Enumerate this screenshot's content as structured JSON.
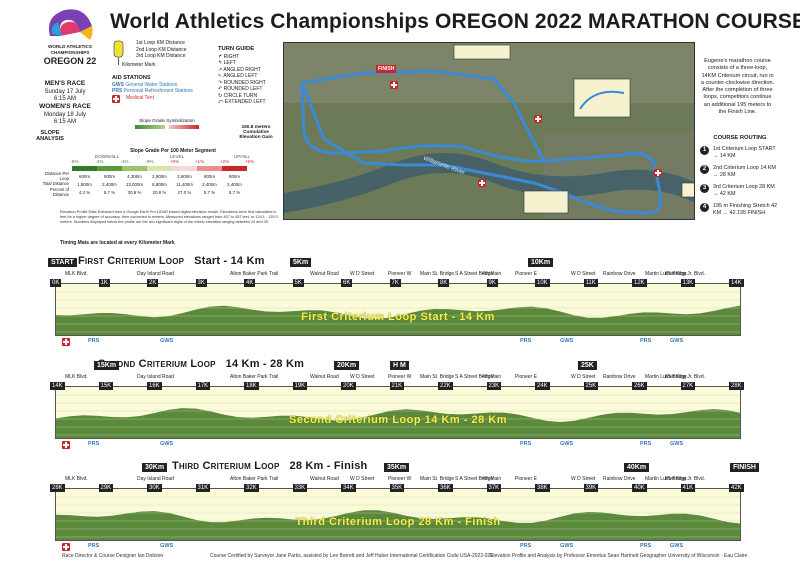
{
  "title": "World Athletics Championships  OREGON 2022  MARATHON COURSE",
  "logo": {
    "line1": "WORLD ATHLETICS",
    "line2": "CHAMPIONSHIPS",
    "line3": "OREGON 22"
  },
  "races": {
    "mens_title": "MEN'S RACE",
    "mens_date": "Sunday 17 July",
    "mens_time": "6:15 AM",
    "womens_title": "WOMEN'S RACE",
    "womens_date": "Monday 18 July",
    "womens_time": "6:15 AM"
  },
  "loop_legend": {
    "l1": "1st Loop KM Distance",
    "l2": "2nd Loop KM Distance",
    "l3": "3rd Loop KM Distance",
    "km_mark": "Kilometer Mark"
  },
  "aid": {
    "title": "AID STATIONS",
    "gws_code": "GWS",
    "gws": "General Water Stations",
    "prs_code": "PRS",
    "prs": "Personal Refreshment Stations",
    "medical": "Medical Tent"
  },
  "turn_guide": {
    "title": "TURN GUIDE",
    "items": [
      "RIGHT",
      "LEFT",
      "ANGLED RIGHT",
      "ANGLED LEFT",
      "ROUNDED RIGHT",
      "ROUNDED LEFT",
      "CIRCLE TURN",
      "EXTENDED LEFT"
    ]
  },
  "slope": {
    "title": "SLOPE ANALYSIS",
    "symbolization": "Slope Grade Symbolization",
    "grade_title": "Slope Grade Per 100 Meter Segment",
    "downhill": "DOWNHILL",
    "level": "LEVEL",
    "uphill": "UPHILL",
    "gain": "150.8 meters Cumulative Elevation Gain",
    "headers": [
      "-5%",
      "-2%",
      "-1%",
      "-0%",
      "+0%",
      "+1%",
      "+2%",
      "+5%"
    ],
    "row_labels": [
      "Distance Per Loop",
      "Total Distance",
      "Percent of Distance"
    ],
    "rows": [
      [
        "600m",
        "800m",
        "4,300m",
        "2,900m",
        "3,800m",
        "800m",
        "800m"
      ],
      [
        "1,800m",
        "2,400m",
        "13,000m",
        "8,800m",
        "11,400m",
        "2,400m",
        "2,400m"
      ],
      [
        "4.3 %",
        "5.7 %",
        "30.8 %",
        "20.8 %",
        "27.0 %",
        "5.7 %",
        "5.7 %"
      ]
    ],
    "note": "Elevation Profile Data Extracted from a Google Earth Pro LIDAR based digital elevation model. Elevations were first calculated in feet for a higher degree of accuracy, then converted to meters. Measured elevations ranged from 407 to 457 feet, or 124.1 - 139.3 meters. Numbers displayed below the profile are the two significant digits of the metric elevation ranging between 24 and 39.",
    "timing": "Timing Mats are located at every Kilometer Mark"
  },
  "map": {
    "finish": "FINISH",
    "river": "Willamette River"
  },
  "description": "Eugene's marathon course consists of a three-loop, 14KM Criterium circuit, run in a counter-clockwise direction. After the completion of three loops, competitors continue an additional 195 meters to the Finish Line.",
  "routing": {
    "title": "COURSE ROUTING",
    "items": [
      {
        "num": "1",
        "text": "1st Criterium Loop START → 14 KM"
      },
      {
        "num": "2",
        "text": "2nd Criterium Loop 14 KM → 28 KM"
      },
      {
        "num": "3",
        "text": "3rd Criterium Loop 28 KM → 42 KM"
      },
      {
        "num": "4",
        "text": "195 m Finishing Stretch 42 KM → 42.195 FINISH"
      }
    ]
  },
  "loops": [
    {
      "title_prefix": "First Criterium Loop",
      "title_suffix": "Start - 14 Km",
      "strip_label": "First Criterium Loop  Start - 14 Km",
      "km_marks": [
        "0K",
        "1K",
        "2K",
        "3K",
        "4K",
        "5K",
        "6K",
        "7K",
        "8K",
        "9K",
        "10K",
        "11K",
        "12K",
        "13K",
        "14K"
      ],
      "callouts": [
        "START",
        "5Km",
        "10Km"
      ]
    },
    {
      "title_prefix": "Second Criterium Loop",
      "title_suffix": "14 Km - 28 Km",
      "strip_label": "Second Criterium Loop  14 Km - 28 Km",
      "km_marks": [
        "14K",
        "15K",
        "16K",
        "17K",
        "18K",
        "19K",
        "20K",
        "21K",
        "22K",
        "23K",
        "24K",
        "25K",
        "26K",
        "27K",
        "28K"
      ],
      "callouts": [
        "15Km",
        "20Km",
        "H M",
        "25K"
      ]
    },
    {
      "title_prefix": "Third Criterium Loop",
      "title_suffix": "28 Km - Finish",
      "strip_label": "Third Criterium Loop  28 Km - Finish",
      "km_marks": [
        "28K",
        "29K",
        "30K",
        "31K",
        "32K",
        "33K",
        "34K",
        "35K",
        "36K",
        "37K",
        "38K",
        "39K",
        "40K",
        "41K",
        "42K"
      ],
      "callouts": [
        "30Km",
        "35Km",
        "40Km",
        "FINISH"
      ]
    }
  ],
  "streets": [
    "MLK Blvd.",
    "Day Island Road",
    "Alton Baker Park Trail",
    "Walnut Road",
    "W D Street",
    "Pioneer W",
    "Main St. Bridge",
    "S A Street Bridge",
    "4th Main",
    "Pioneer E",
    "W D Street",
    "Rainbow Drive",
    "Martin Luther King Jr. Blvd.",
    "I-5 Bridge"
  ],
  "stations": [
    "PRS",
    "GWS",
    "PRS",
    "GWS",
    "PRS",
    "GWS"
  ],
  "footer": {
    "designer": "Race Director & Course Designer Ian Dobson",
    "certified": "Course Certified by Surveyor Jane Parks, assisted by Lee Barrett and Jeff Huber   International Certification Code USA-2022-026",
    "analysis": "Elevation Profile and Analysis by Professor Emeritus Sean Hartnett   Geographer   University of Wisconsin - Eau Claire"
  },
  "colors": {
    "strip_bg": "#fbfbd8",
    "profile": "#5a8a3a",
    "route": "#3a8ad6",
    "medical": "#c8282c",
    "label": "#fcee4a"
  }
}
